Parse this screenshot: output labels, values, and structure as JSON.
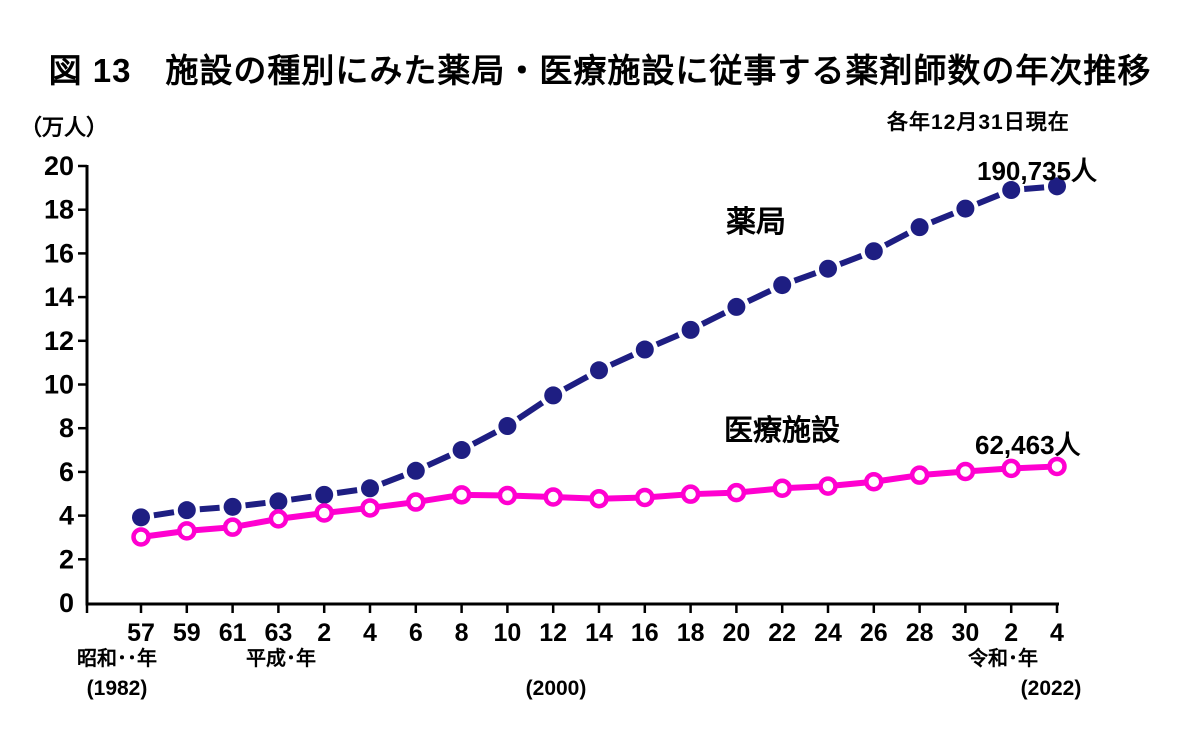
{
  "figure": {
    "title": "図 13　施設の種別にみた薬局・医療施設に従事する薬剤師数の年次推移",
    "unit_label": "（万人）",
    "date_note": "各年12月31日現在"
  },
  "chart_data": {
    "type": "line",
    "title": "施設の種別にみた薬局・医療施設に従事する薬剤師数の年次推移",
    "ylabel": "（万人）",
    "ylim": [
      0,
      20
    ],
    "grid": false,
    "y_ticks": [
      0,
      2,
      4,
      6,
      8,
      10,
      12,
      14,
      16,
      18,
      20
    ],
    "x_tick_labels": [
      "57",
      "59",
      "61",
      "63",
      "2",
      "4",
      "6",
      "8",
      "10",
      "12",
      "14",
      "16",
      "18",
      "20",
      "22",
      "24",
      "26",
      "28",
      "30",
      "2",
      "4"
    ],
    "era_labels": [
      "昭和･･年",
      "平成･年",
      "令和･年"
    ],
    "era_year_labels": [
      "(1982)",
      "(2000)",
      "(2022)"
    ],
    "series": [
      {
        "name": "薬局",
        "color": "#1e1e82",
        "line_style": "dashed",
        "marker": "filled-circle",
        "end_label": "190,735人",
        "values": [
          3.92,
          4.25,
          4.4,
          4.65,
          4.95,
          5.25,
          6.05,
          7.0,
          8.1,
          9.5,
          10.65,
          11.6,
          12.5,
          13.55,
          14.55,
          15.3,
          16.1,
          17.2,
          18.05,
          18.9,
          19.07
        ]
      },
      {
        "name": "医療施設",
        "color": "#ff00d0",
        "line_style": "solid",
        "marker": "open-circle",
        "end_label": "62,463人",
        "values": [
          3.02,
          3.3,
          3.47,
          3.85,
          4.12,
          4.35,
          4.62,
          4.95,
          4.92,
          4.85,
          4.77,
          4.83,
          4.98,
          5.05,
          5.25,
          5.35,
          5.55,
          5.85,
          6.02,
          6.16,
          6.25
        ]
      }
    ]
  }
}
